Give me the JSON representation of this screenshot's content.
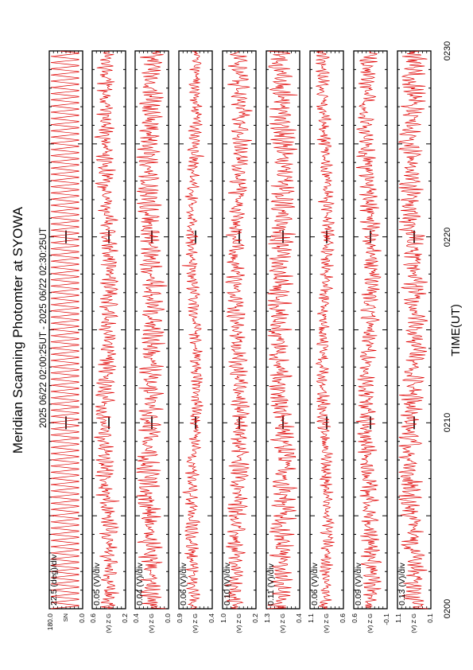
{
  "chart_data": {
    "type": "line",
    "orientation": "rotated-90-counterclockwise",
    "title": "Meridian Scanning Photomter at SYOWA",
    "subtitle": "2025 06/22 02:00:25UT - 2025 06/22 02:30:25UT",
    "xlabel": "TIME(UT)",
    "x_ticks": [
      "0200",
      "0210",
      "0220",
      "0230"
    ],
    "x_range_minutes": [
      0,
      30
    ],
    "line_color": "#e00000",
    "grid": false,
    "panels": [
      {
        "scale": "22.5 (deg)/div",
        "y_ticks": [
          "180.0",
          "0.0"
        ],
        "side_labels": [
          "SN"
        ],
        "signal": "sawtooth"
      },
      {
        "scale": "0.05 (V)/div",
        "y_ticks": [
          "0.6",
          "0.2"
        ],
        "side_labels": [
          "(V)",
          "Z",
          "G"
        ],
        "signal": "noise"
      },
      {
        "scale": "0.04 (V)/div",
        "y_ticks": [
          "0.4",
          "0.0"
        ],
        "side_labels": [
          "(V)",
          "Z",
          "G"
        ],
        "signal": "noise"
      },
      {
        "scale": "0.06 (V)/div",
        "y_ticks": [
          "0.9",
          "0.4"
        ],
        "side_labels": [
          "(V)",
          "Z",
          "G"
        ],
        "signal": "noise"
      },
      {
        "scale": "0.10 (V)/div",
        "y_ticks": [
          "1.0",
          "0.2"
        ],
        "side_labels": [
          "(V)",
          "Z",
          "G"
        ],
        "signal": "noise"
      },
      {
        "scale": "0.11 (V)/div",
        "y_ticks": [
          "1.3",
          "0.4"
        ],
        "side_labels": [
          "(V)",
          "Z",
          "G"
        ],
        "signal": "noise"
      },
      {
        "scale": "0.06 (V)/div",
        "y_ticks": [
          "1.1",
          "0.6"
        ],
        "side_labels": [
          "(V)",
          "Z",
          "G"
        ],
        "signal": "noise"
      },
      {
        "scale": "0.09 (V)/div",
        "y_ticks": [
          "0.6",
          "-0.1"
        ],
        "side_labels": [
          "(V)",
          "Z",
          "G"
        ],
        "signal": "noise"
      },
      {
        "scale": "0.13 (V)/div",
        "y_ticks": [
          "1.1",
          "0.1"
        ],
        "side_labels": [
          "(V)",
          "Z",
          "G"
        ],
        "signal": "noise"
      }
    ]
  }
}
